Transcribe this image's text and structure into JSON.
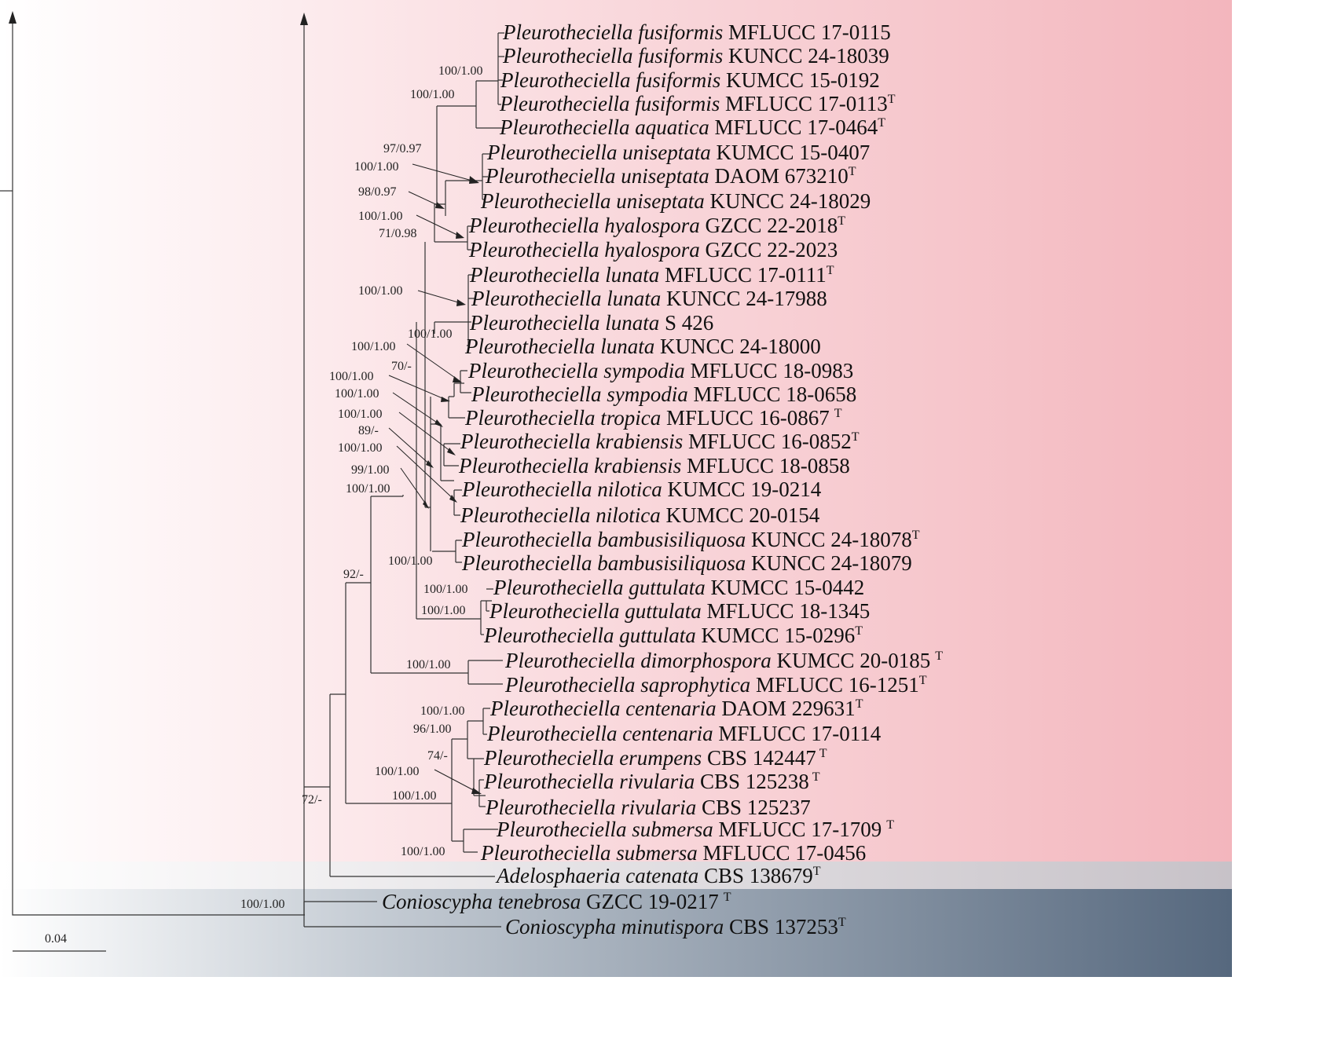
{
  "colors": {
    "ingroup_band": [
      "#ffffff",
      "#fbe3e6",
      "#f3b6bd"
    ],
    "adelosphaeria_band": [
      "#ffffff",
      "#c7c2c8"
    ],
    "outgroup_band": [
      "#ffffff",
      "#c5ccd4",
      "#56687e"
    ],
    "line": "#333333"
  },
  "scale_bar": {
    "label": "0.04"
  },
  "taxa": [
    {
      "genus": "Pleurotheciella",
      "species": "fusiformis",
      "strain": "MFLUCC 17-0115",
      "type": false
    },
    {
      "genus": "Pleurotheciella",
      "species": "fusiformis",
      "strain": "KUNCC 24-18039",
      "type": false
    },
    {
      "genus": "Pleurotheciella",
      "species": "fusiformis",
      "strain": "KUMCC 15-0192",
      "type": false
    },
    {
      "genus": "Pleurotheciella",
      "species": "fusiformis",
      "strain": "MFLUCC 17-0113",
      "type": true
    },
    {
      "genus": "Pleurotheciella",
      "species": "aquatica",
      "strain": "MFLUCC 17-0464",
      "type": true
    },
    {
      "genus": "Pleurotheciella",
      "species": "uniseptata",
      "strain": "KUMCC 15-0407",
      "type": false
    },
    {
      "genus": "Pleurotheciella",
      "species": "uniseptata",
      "strain": "DAOM 673210",
      "type": true
    },
    {
      "genus": "Pleurotheciella",
      "species": "uniseptata",
      "strain": "KUNCC 24-18029",
      "type": false
    },
    {
      "genus": "Pleurotheciella",
      "species": "hyalospora",
      "strain": "GZCC 22-2018",
      "type": true
    },
    {
      "genus": "Pleurotheciella",
      "species": "hyalospora",
      "strain": "GZCC 22-2023",
      "type": false
    },
    {
      "genus": "Pleurotheciella",
      "species": "lunata",
      "strain": "MFLUCC 17-0111",
      "type": true
    },
    {
      "genus": "Pleurotheciella",
      "species": "lunata",
      "strain": "KUNCC 24-17988",
      "type": false
    },
    {
      "genus": "Pleurotheciella",
      "species": "lunata",
      "strain": "S 426",
      "type": false
    },
    {
      "genus": "Pleurotheciella",
      "species": "lunata",
      "strain": "KUNCC 24-18000",
      "type": false
    },
    {
      "genus": "Pleurotheciella",
      "species": "sympodia",
      "strain": "MFLUCC 18-0983",
      "type": false
    },
    {
      "genus": "Pleurotheciella",
      "species": "sympodia",
      "strain": "MFLUCC 18-0658",
      "type": false
    },
    {
      "genus": "Pleurotheciella",
      "species": "tropica",
      "strain": "MFLUCC 16-0867",
      "type": true
    },
    {
      "genus": "Pleurotheciella",
      "species": "krabiensis",
      "strain": "MFLUCC 16-0852",
      "type": true
    },
    {
      "genus": "Pleurotheciella",
      "species": "krabiensis",
      "strain": "MFLUCC 18-0858",
      "type": false
    },
    {
      "genus": "Pleurotheciella",
      "species": "nilotica",
      "strain": "KUMCC 19-0214",
      "type": false
    },
    {
      "genus": "Pleurotheciella",
      "species": "nilotica",
      "strain": "KUMCC 20-0154",
      "type": false
    },
    {
      "genus": "Pleurotheciella",
      "species": "bambusisiliquosa",
      "strain": "KUNCC 24-18078",
      "type": true
    },
    {
      "genus": "Pleurotheciella",
      "species": "bambusisiliquosa",
      "strain": "KUNCC 24-18079",
      "type": false
    },
    {
      "genus": "Pleurotheciella",
      "species": "guttulata",
      "strain": "KUMCC 15-0442",
      "type": false
    },
    {
      "genus": "Pleurotheciella",
      "species": "guttulata",
      "strain": "MFLUCC 18-1345",
      "type": false
    },
    {
      "genus": "Pleurotheciella",
      "species": "guttulata",
      "strain": "KUMCC 15-0296",
      "type": true
    },
    {
      "genus": "Pleurotheciella",
      "species": "dimorphospora",
      "strain": "KUMCC 20-0185",
      "type": true
    },
    {
      "genus": "Pleurotheciella",
      "species": "saprophytica",
      "strain": "MFLUCC 16-1251",
      "type": true
    },
    {
      "genus": "Pleurotheciella",
      "species": "centenaria",
      "strain": "DAOM 229631",
      "type": true
    },
    {
      "genus": "Pleurotheciella",
      "species": "centenaria",
      "strain": "MFLUCC 17-0114",
      "type": false
    },
    {
      "genus": "Pleurotheciella",
      "species": "erumpens",
      "strain": "CBS 142447",
      "type": true
    },
    {
      "genus": "Pleurotheciella",
      "species": "rivularia",
      "strain": "CBS 125238",
      "type": true
    },
    {
      "genus": "Pleurotheciella",
      "species": "rivularia",
      "strain": "CBS 125237",
      "type": false
    },
    {
      "genus": "Pleurotheciella",
      "species": "submersa",
      "strain": "MFLUCC 17-1709",
      "type": true
    },
    {
      "genus": "Pleurotheciella",
      "species": "submersa",
      "strain": "MFLUCC 17-0456",
      "type": false
    },
    {
      "genus": "Adelosphaeria",
      "species": "catenata",
      "strain": "CBS 138679",
      "type": true
    },
    {
      "genus": "Conioscypha",
      "species": "tenebrosa",
      "strain": "GZCC 19-0217",
      "type": true
    },
    {
      "genus": "Conioscypha",
      "species": "minutispora",
      "strain": "CBS 137253",
      "type": true
    }
  ],
  "type_marker": "T",
  "support_values": [
    "100/1.00",
    "100/1.00",
    "97/0.97",
    "100/1.00",
    "98/0.97",
    "100/1.00",
    "71/0.98",
    "100/1.00",
    "100/1.00",
    "100/1.00",
    "70/-",
    "100/1.00",
    "100/1.00",
    "100/1.00",
    "89/-",
    "100/1.00",
    "99/1.00",
    "100/1.00",
    "100/1.00",
    "100/1.00",
    "100/1.00",
    "92/-",
    "100/1.00",
    "100/1.00",
    "96/1.00",
    "74/-",
    "100/1.00",
    "100/1.00",
    "72/-",
    "100/1.00",
    "100/1.00"
  ]
}
